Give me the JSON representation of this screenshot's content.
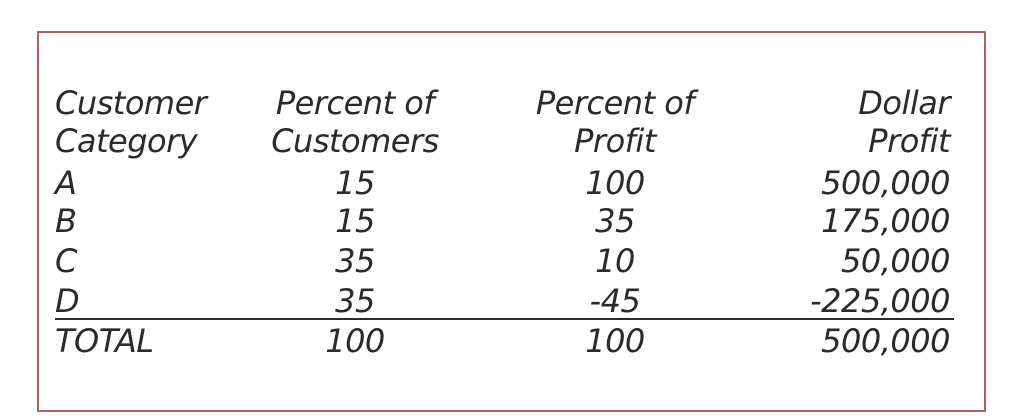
{
  "table": {
    "headers": [
      [
        "Customer",
        "Category"
      ],
      [
        "Percent of",
        "Customers"
      ],
      [
        "Percent of",
        "Profit"
      ],
      [
        "Dollar",
        "Profit"
      ]
    ],
    "rows": [
      [
        "A",
        "15",
        "100",
        "500,000"
      ],
      [
        "B",
        "15",
        "35",
        "175,000"
      ],
      [
        "C",
        "35",
        "10",
        "50,000"
      ],
      [
        "D",
        "35",
        "-45",
        "-225,000"
      ]
    ],
    "total": [
      "TOTAL",
      "100",
      "100",
      "500,000"
    ]
  },
  "colors": {
    "border": "#b06060",
    "text": "#2a2a2a"
  }
}
